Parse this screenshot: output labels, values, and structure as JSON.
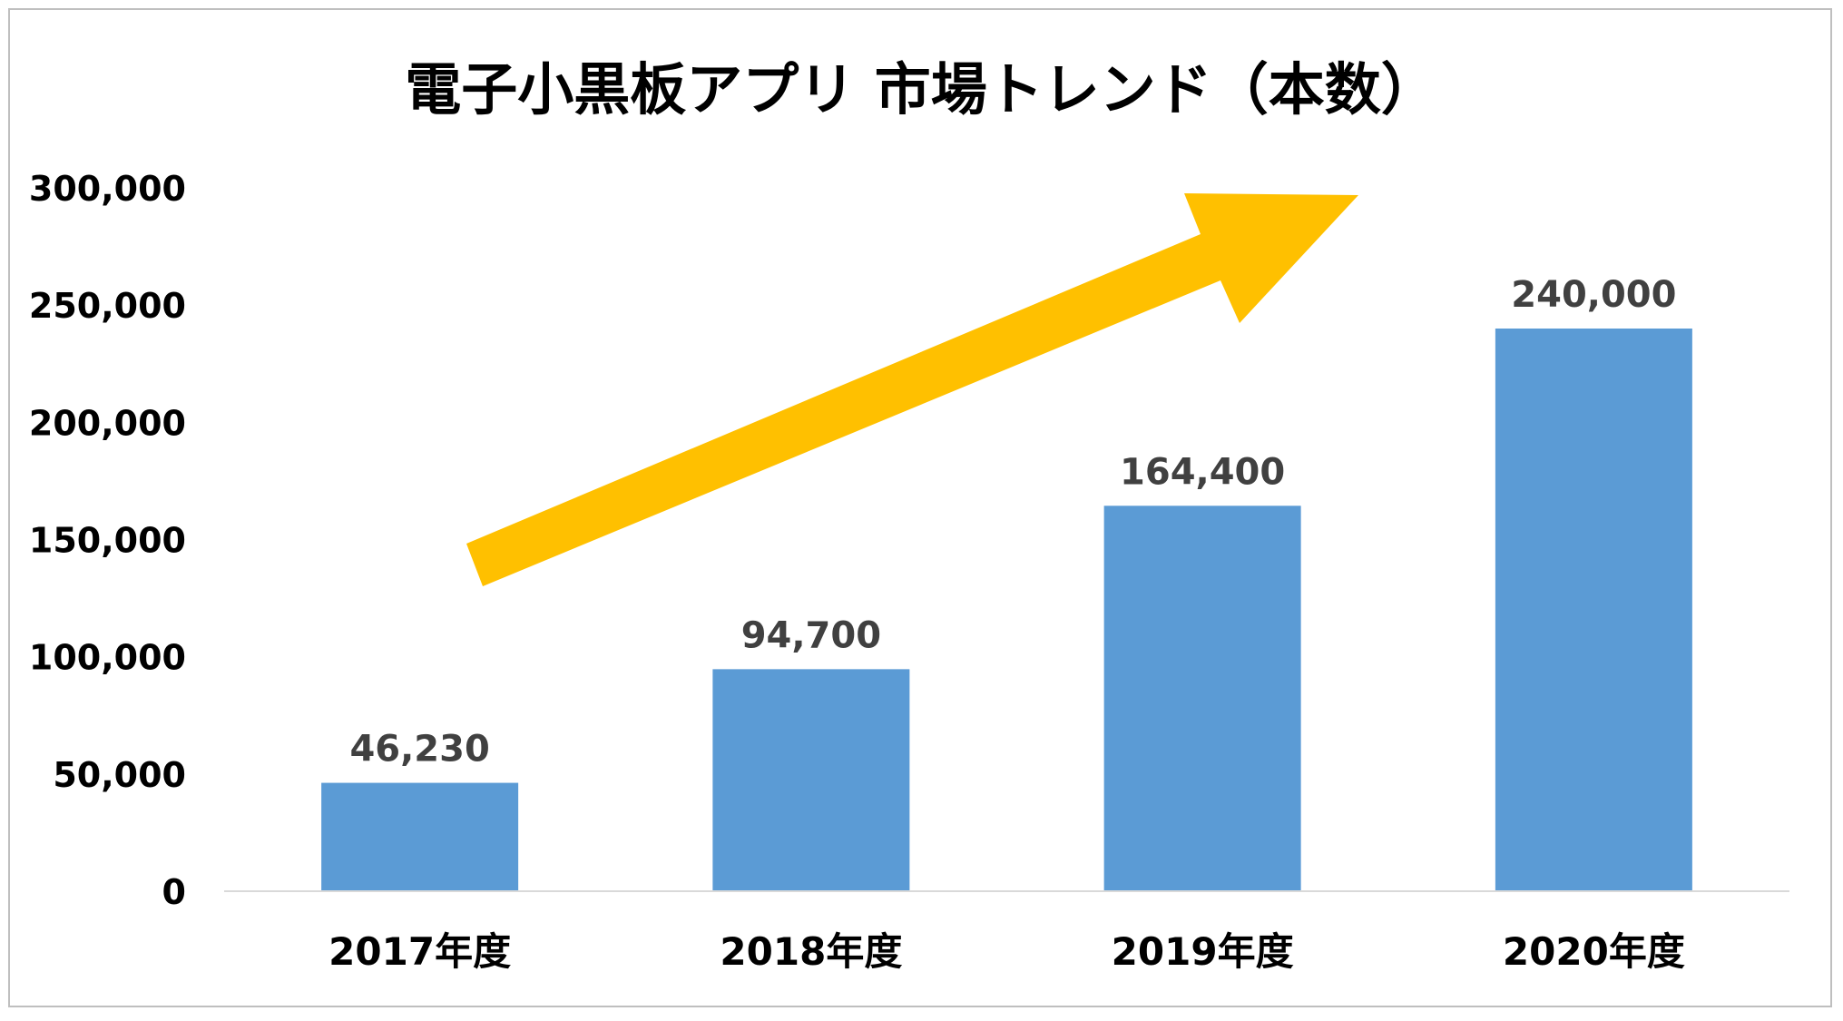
{
  "chart_data": {
    "type": "bar",
    "title": "電子小黒板アプリ 市場トレンド（本数）",
    "xlabel": "",
    "ylabel": "",
    "categories": [
      "2017年度",
      "2018年度",
      "2019年度",
      "2020年度"
    ],
    "values": [
      46230,
      94700,
      164400,
      240000
    ],
    "data_labels": [
      "46,230",
      "94,700",
      "164,400",
      "240,000"
    ],
    "ylim": [
      0,
      300000
    ],
    "yticks": [
      0,
      50000,
      100000,
      150000,
      200000,
      250000,
      300000
    ],
    "ytick_labels": [
      "0",
      "50,000",
      "100,000",
      "150,000",
      "200,000",
      "250,000",
      "300,000"
    ],
    "grid": false,
    "legend": "none",
    "bar_color": "#5b9bd5",
    "annotation": {
      "type": "trend-arrow",
      "direction": "up-right",
      "color": "#ffc000"
    }
  }
}
